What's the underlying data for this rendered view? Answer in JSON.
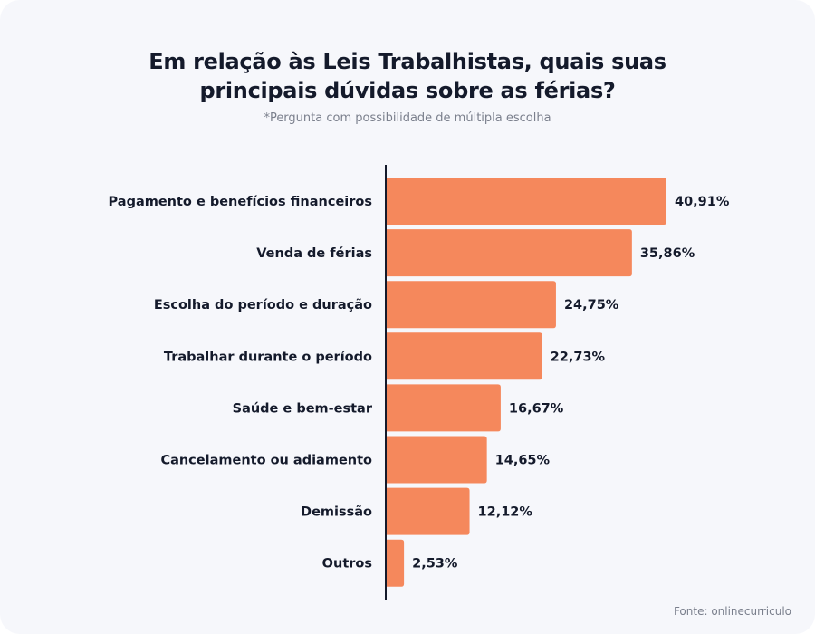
{
  "header": {
    "title_line1": "Em relação às Leis Trabalhistas, quais suas",
    "title_line2": "principais dúvidas sobre as férias?",
    "subtitle": "*Pergunta com possibilidade de múltipla escolha"
  },
  "footer": {
    "source": "Fonte: onlinecurriculo"
  },
  "colors": {
    "bar": "#f5885c",
    "axis": "#141a2b",
    "text": "#141a2b",
    "background": "#f6f7fb"
  },
  "chart_data": {
    "type": "bar",
    "orientation": "horizontal",
    "title": "Em relação às Leis Trabalhistas, quais suas principais dúvidas sobre as férias?",
    "subtitle": "*Pergunta com possibilidade de múltipla escolha",
    "categories": [
      "Pagamento e benefícios financeiros",
      "Venda de férias",
      "Escolha do período e duração",
      "Trabalhar durante o período",
      "Saúde e bem-estar",
      "Cancelamento ou adiamento",
      "Demissão",
      "Outros"
    ],
    "values": [
      40.91,
      35.86,
      24.75,
      22.73,
      16.67,
      14.65,
      12.12,
      2.53
    ],
    "data_labels": [
      "40,91%",
      "35,86%",
      "24,75%",
      "22,73%",
      "16,67%",
      "14,65%",
      "12,12%",
      "2,53%"
    ],
    "xlim": [
      0,
      40.91
    ],
    "grid": false,
    "legend": "none"
  }
}
